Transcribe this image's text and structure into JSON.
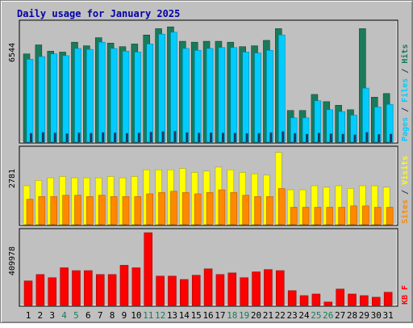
{
  "chart_data": {
    "type": "bar",
    "title": "Daily usage for January 2025",
    "colors": {
      "title": "#0000aa",
      "hits": "#1a7a5a",
      "files": "#00ccff",
      "pages": "#1f3b5a",
      "visits": "#ffff00",
      "sites": "#ff8800",
      "kbf": "#ff0000",
      "weekend_label": "#1a7a5a",
      "panel_bg": "#c0c0c0"
    },
    "x_labels": [
      "1",
      "2",
      "3",
      "4",
      "5",
      "6",
      "7",
      "8",
      "9",
      "10",
      "11",
      "12",
      "13",
      "14",
      "15",
      "16",
      "17",
      "18",
      "19",
      "20",
      "21",
      "22",
      "23",
      "24",
      "25",
      "26",
      "27",
      "28",
      "29",
      "30",
      "31"
    ],
    "weekend_days": [
      4,
      5,
      11,
      12,
      18,
      19,
      25,
      26
    ],
    "panels": [
      {
        "name": "hits-files-pages",
        "ymax_label": "6544",
        "ymax": 6544,
        "right_labels": [
          {
            "text": "Pages",
            "color": "#00ccff"
          },
          {
            "text": " / ",
            "color": "#1f3b5a"
          },
          {
            "text": "Files",
            "color": "#00ccff"
          },
          {
            "text": " / ",
            "color": "#1f3b5a"
          },
          {
            "text": "Hits",
            "color": "#1a7a5a"
          }
        ],
        "series": [
          {
            "name": "Hits",
            "values": [
              4900,
              5400,
              5050,
              5000,
              5550,
              5350,
              5800,
              5500,
              5300,
              5450,
              5950,
              6300,
              6400,
              5600,
              5550,
              5600,
              5600,
              5550,
              5300,
              5350,
              5650,
              6300,
              1760,
              1760,
              2650,
              2250,
              2050,
              1800,
              6300,
              2500,
              2700
            ]
          },
          {
            "name": "Files",
            "values": [
              4600,
              4750,
              4900,
              4800,
              5200,
              5150,
              5550,
              5200,
              5050,
              5000,
              5450,
              6000,
              6100,
              5200,
              5100,
              5200,
              5250,
              5250,
              5000,
              4950,
              5100,
              5950,
              1350,
              1350,
              2300,
              1800,
              1700,
              1500,
              3000,
              1950,
              2100
            ]
          },
          {
            "name": "Pages",
            "values": [
              500,
              550,
              520,
              480,
              530,
              510,
              540,
              530,
              500,
              520,
              570,
              600,
              620,
              540,
              520,
              530,
              520,
              510,
              490,
              500,
              540,
              600,
              500,
              450,
              520,
              480,
              460,
              420,
              550,
              440,
              460
            ]
          }
        ]
      },
      {
        "name": "visits-sites",
        "ymax_label": "2781",
        "ymax": 2781,
        "right_labels": [
          {
            "text": "Sites",
            "color": "#ff8800"
          },
          {
            "text": " / ",
            "color": "#1f3b5a"
          },
          {
            "text": "Visits",
            "color": "#ffff00"
          }
        ],
        "series": [
          {
            "name": "Visits",
            "values": [
              1450,
              1650,
              1750,
              1800,
              1750,
              1750,
              1750,
              1800,
              1750,
              1800,
              2050,
              2050,
              2050,
              2100,
              1950,
              2000,
              2150,
              2050,
              1950,
              1900,
              1850,
              2700,
              1300,
              1300,
              1450,
              1400,
              1450,
              1350,
              1450,
              1450,
              1400
            ]
          },
          {
            "name": "Sites",
            "values": [
              950,
              1050,
              1050,
              1100,
              1100,
              1050,
              1100,
              1050,
              1050,
              1050,
              1150,
              1200,
              1250,
              1200,
              1150,
              1200,
              1300,
              1200,
              1100,
              1050,
              1050,
              1350,
              650,
              650,
              650,
              650,
              650,
              700,
              700,
              650,
              650
            ]
          }
        ]
      },
      {
        "name": "kbf",
        "ymax_label": "409978",
        "ymax": 409978,
        "right_labels": [
          {
            "text": "KB F",
            "color": "#ff0000"
          }
        ],
        "series": [
          {
            "name": "KB F",
            "values": [
              138000,
              174000,
              156000,
              212000,
              196000,
              196000,
              174000,
              174000,
              226000,
              212000,
              409978,
              165000,
              165000,
              146000,
              170000,
              206000,
              174000,
              183000,
              156000,
              189000,
              202000,
              196000,
              83000,
              55000,
              64000,
              19000,
              92000,
              64000,
              55000,
              46000,
              74000
            ]
          }
        ]
      }
    ]
  }
}
